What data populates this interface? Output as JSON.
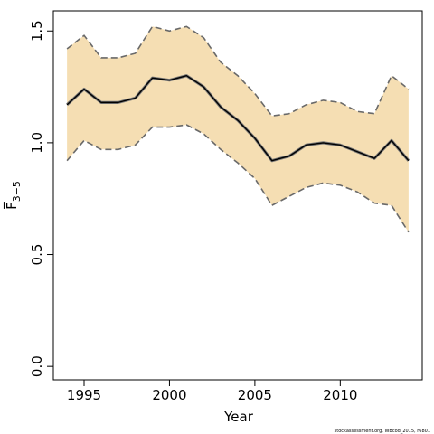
{
  "chart_data": {
    "type": "line",
    "xlabel": "Year",
    "ylabel": "F̅",
    "ylabel_sub": "3−5",
    "footnote": "stockassessment.org, WBcod_2015, r6801",
    "xlim": [
      1993.2,
      2014.8
    ],
    "ylim": [
      -0.06,
      1.59
    ],
    "x_ticks": [
      1995,
      2000,
      2005,
      2010
    ],
    "y_ticks": [
      0.0,
      0.5,
      1.0,
      1.5
    ],
    "y_tick_labels": [
      "0.0",
      "0.5",
      "1.0",
      "1.5"
    ],
    "x": [
      1994,
      1995,
      1996,
      1997,
      1998,
      1999,
      2000,
      2001,
      2002,
      2003,
      2004,
      2005,
      2006,
      2007,
      2008,
      2009,
      2010,
      2011,
      2012,
      2013,
      2014
    ],
    "series": [
      {
        "role": "estimate",
        "values": [
          1.17,
          1.24,
          1.18,
          1.18,
          1.2,
          1.29,
          1.28,
          1.3,
          1.25,
          1.16,
          1.1,
          1.02,
          0.92,
          0.94,
          0.99,
          1.0,
          0.99,
          0.96,
          0.93,
          1.01,
          0.92
        ]
      },
      {
        "role": "upper",
        "values": [
          1.42,
          1.48,
          1.38,
          1.38,
          1.4,
          1.52,
          1.5,
          1.52,
          1.47,
          1.36,
          1.3,
          1.22,
          1.12,
          1.13,
          1.17,
          1.19,
          1.18,
          1.14,
          1.13,
          1.3,
          1.24
        ]
      },
      {
        "role": "lower",
        "values": [
          0.92,
          1.01,
          0.97,
          0.97,
          0.99,
          1.07,
          1.07,
          1.08,
          1.04,
          0.97,
          0.91,
          0.84,
          0.72,
          0.76,
          0.8,
          0.82,
          0.81,
          0.78,
          0.73,
          0.72,
          0.6
        ]
      }
    ],
    "colors": {
      "band": "#f5deb3",
      "line": "#000000",
      "bound": "#696969"
    },
    "grid": false,
    "legend": "none"
  }
}
